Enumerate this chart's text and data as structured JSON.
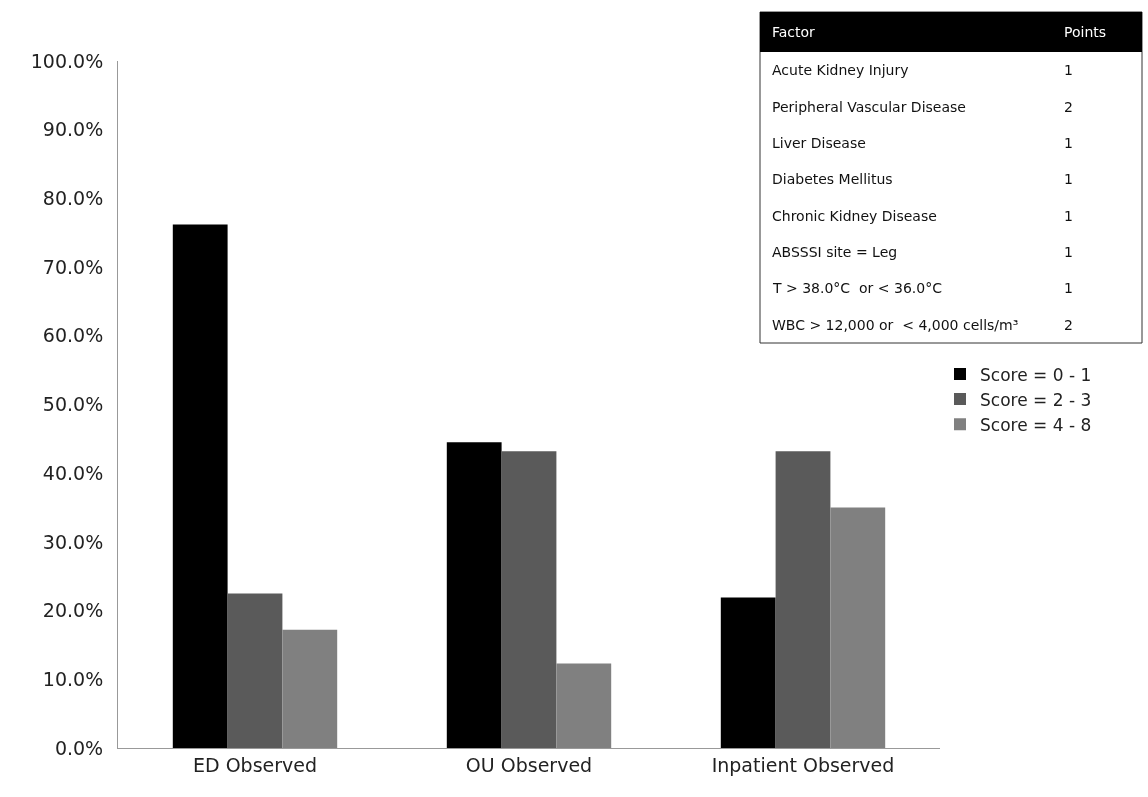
{
  "chart_data": {
    "type": "bar",
    "categories": [
      "ED Observed",
      "OU Observed",
      "Inpatient Observed"
    ],
    "series": [
      {
        "name": "Score = 0 - 1",
        "color": "#000000",
        "values": [
          76.2,
          44.5,
          21.9
        ]
      },
      {
        "name": "Score = 2 - 3",
        "color": "#5a5a5a",
        "values": [
          22.5,
          43.2,
          43.2
        ]
      },
      {
        "name": "Score = 4 - 8",
        "color": "#808080",
        "values": [
          17.2,
          12.3,
          35.0
        ]
      }
    ],
    "ylim": [
      0,
      100
    ],
    "yticks": [
      {
        "value": 0,
        "label": "0.0%"
      },
      {
        "value": 10,
        "label": "10.0%"
      },
      {
        "value": 20,
        "label": "20.0%"
      },
      {
        "value": 30,
        "label": "30.0%"
      },
      {
        "value": 40,
        "label": "40.0%"
      },
      {
        "value": 50,
        "label": "50.0%"
      },
      {
        "value": 60,
        "label": "60.0%"
      },
      {
        "value": 70,
        "label": "70.0%"
      },
      {
        "value": 80,
        "label": "80.0%"
      },
      {
        "value": 90,
        "label": "90.0%"
      },
      {
        "value": 100,
        "label": "100.0%"
      }
    ],
    "legend": "right",
    "annotations": [
      "Factor",
      "Points",
      "Acute Kidney Injury",
      "1",
      "Peripheral Vascular Disease",
      "2",
      "Liver Disease",
      "1",
      "Diabetes Mellitus",
      "1",
      "Chronic Kidney Disease",
      "1",
      "ABSSSI site = Leg",
      "1",
      "T > 38.0°C  or < 36.0°C",
      "1",
      "WBC > 12,000 or  < 4,000 cells/m³",
      "2"
    ]
  }
}
